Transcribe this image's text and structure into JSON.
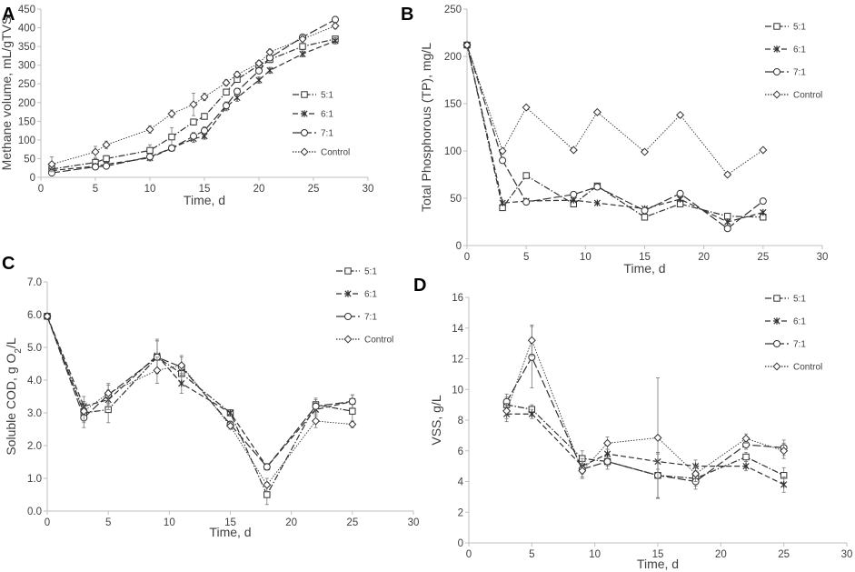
{
  "figure": {
    "colors": {
      "axis": "#bfbfbf",
      "series": "#333333",
      "text": "#404040"
    }
  },
  "chart_data": [
    {
      "panel": "A",
      "type": "line",
      "xlabel": "Time, d",
      "ylabel": "Methane volume, mL/gTVS",
      "xlim": [
        0,
        30
      ],
      "ylim": [
        0,
        450
      ],
      "xticks": [
        0,
        5,
        10,
        15,
        20,
        25,
        30
      ],
      "yticks": [
        0,
        50,
        100,
        150,
        200,
        250,
        300,
        350,
        400,
        450
      ],
      "series": [
        {
          "name": "5:1",
          "marker": "square",
          "dash": "7,2,1.5,2",
          "x": [
            1,
            5,
            6,
            10,
            12,
            14,
            15,
            17,
            18,
            20,
            21,
            24,
            27
          ],
          "y": [
            22,
            40,
            50,
            72,
            108,
            148,
            163,
            228,
            262,
            300,
            315,
            350,
            370
          ],
          "err": [
            8,
            10,
            8,
            15,
            25,
            8,
            8,
            8,
            8,
            8,
            8,
            8,
            8
          ]
        },
        {
          "name": "6:1",
          "marker": "star",
          "dash": "6,3",
          "x": [
            1,
            5,
            6,
            10,
            12,
            14,
            15,
            17,
            18,
            20,
            21,
            24,
            27
          ],
          "y": [
            18,
            30,
            35,
            52,
            78,
            103,
            110,
            188,
            213,
            260,
            286,
            330,
            365
          ],
          "err": [
            6,
            6,
            6,
            8,
            8,
            10,
            8,
            10,
            10,
            8,
            8,
            8,
            8
          ]
        },
        {
          "name": "7:1",
          "marker": "circle",
          "dash": "9,3",
          "x": [
            1,
            5,
            6,
            10,
            12,
            14,
            15,
            17,
            18,
            20,
            21,
            24,
            27
          ],
          "y": [
            12,
            28,
            30,
            55,
            78,
            110,
            125,
            192,
            230,
            285,
            320,
            375,
            422
          ],
          "err": [
            6,
            6,
            6,
            8,
            8,
            10,
            10,
            10,
            8,
            8,
            8,
            8,
            8
          ]
        },
        {
          "name": "Control",
          "marker": "diamond",
          "dash": "1.5,1.5",
          "x": [
            1,
            5,
            6,
            10,
            12,
            14,
            15,
            17,
            18,
            20,
            21,
            24,
            27
          ],
          "y": [
            35,
            68,
            87,
            128,
            170,
            195,
            215,
            253,
            275,
            305,
            335,
            370,
            405
          ],
          "err": [
            20,
            15,
            10,
            10,
            10,
            30,
            10,
            8,
            8,
            8,
            8,
            8,
            8
          ]
        }
      ]
    },
    {
      "panel": "B",
      "type": "line",
      "xlabel": "Time, d",
      "ylabel": "Total Phosphorous (TP), mg/L",
      "xlim": [
        0,
        30
      ],
      "ylim": [
        0,
        250
      ],
      "xticks": [
        0,
        5,
        10,
        15,
        20,
        25,
        30
      ],
      "yticks": [
        0,
        50,
        100,
        150,
        200,
        250
      ],
      "series": [
        {
          "name": "5:1",
          "marker": "square",
          "dash": "7,2,1.5,2",
          "x": [
            0,
            3,
            5,
            9,
            11,
            15,
            18,
            22,
            25
          ],
          "y": [
            212,
            40,
            74,
            44,
            63,
            30,
            44,
            31,
            30
          ]
        },
        {
          "name": "6:1",
          "marker": "star",
          "dash": "6,3",
          "x": [
            0,
            3,
            5,
            9,
            11,
            15,
            18,
            22,
            25
          ],
          "y": [
            212,
            45,
            47,
            48,
            45,
            39,
            49,
            25,
            35
          ]
        },
        {
          "name": "7:1",
          "marker": "circle",
          "dash": "9,3",
          "x": [
            0,
            3,
            5,
            9,
            11,
            15,
            18,
            22,
            25
          ],
          "y": [
            212,
            90,
            46,
            54,
            62,
            37,
            55,
            18,
            47
          ]
        },
        {
          "name": "Control",
          "marker": "diamond",
          "dash": "1.5,1.5",
          "x": [
            0,
            3,
            5,
            9,
            11,
            15,
            18,
            22,
            25
          ],
          "y": [
            212,
            100,
            146,
            101,
            141,
            99,
            138,
            75,
            101
          ]
        }
      ]
    },
    {
      "panel": "C",
      "type": "line",
      "xlabel": "Time, d",
      "ylabel": "Soluble COD,  g O2/L",
      "xlim": [
        0,
        30
      ],
      "ylim": [
        0,
        7
      ],
      "xticks": [
        0,
        5,
        10,
        15,
        20,
        25,
        30
      ],
      "yticks": [
        "0.0",
        "1.0",
        "2.0",
        "3.0",
        "4.0",
        "5.0",
        "6.0",
        "7.0"
      ],
      "series": [
        {
          "name": "5:1",
          "marker": "square",
          "dash": "7,2,1.5,2",
          "x": [
            0,
            3,
            5,
            9,
            11,
            15,
            18,
            22,
            25
          ],
          "y": [
            5.95,
            3.0,
            3.1,
            4.7,
            4.2,
            3.0,
            0.5,
            3.25,
            3.05
          ],
          "err": [
            0.05,
            0.3,
            0.4,
            0.5,
            0.3,
            0.1,
            0.3,
            0.2,
            0.3
          ]
        },
        {
          "name": "6:1",
          "marker": "star",
          "dash": "6,3",
          "x": [
            0,
            3,
            5,
            9,
            11,
            15,
            18,
            22,
            25
          ],
          "y": [
            5.95,
            3.2,
            3.4,
            4.75,
            3.9,
            3.0,
            1.35,
            3.1,
            3.35
          ],
          "err": [
            0.05,
            0.3,
            0.3,
            0.5,
            0.3,
            0.1,
            0.1,
            0.2,
            0.2
          ]
        },
        {
          "name": "7:1",
          "marker": "circle",
          "dash": "9,3",
          "x": [
            0,
            3,
            5,
            9,
            11,
            15,
            18,
            22,
            25
          ],
          "y": [
            5.95,
            2.85,
            3.55,
            4.7,
            4.4,
            2.65,
            1.35,
            3.2,
            3.35
          ],
          "err": [
            0.05,
            0.3,
            0.3,
            0.5,
            0.3,
            0.1,
            0.1,
            0.2,
            0.2
          ]
        },
        {
          "name": "Control",
          "marker": "diamond",
          "dash": "1.5,1.5",
          "x": [
            0,
            3,
            5,
            9,
            11,
            15,
            18,
            22,
            25
          ],
          "y": [
            5.95,
            3.05,
            3.6,
            4.3,
            4.45,
            2.6,
            0.8,
            2.75,
            2.65
          ],
          "err": [
            0.05,
            0.3,
            0.3,
            0.4,
            0.3,
            0.1,
            0.2,
            0.2,
            0.1
          ]
        }
      ]
    },
    {
      "panel": "D",
      "type": "line",
      "xlabel": "Time, d",
      "ylabel": "VSS, g/L",
      "xlim": [
        0,
        30
      ],
      "ylim": [
        0,
        16
      ],
      "xticks": [
        0,
        5,
        10,
        15,
        20,
        25,
        30
      ],
      "yticks": [
        0,
        2,
        4,
        6,
        8,
        10,
        12,
        14,
        16
      ],
      "series": [
        {
          "name": "5:1",
          "marker": "square",
          "dash": "7,2,1.5,2",
          "x": [
            3,
            5,
            9,
            11,
            15,
            18,
            22,
            25
          ],
          "y": [
            9.0,
            8.7,
            5.5,
            5.3,
            4.4,
            4.2,
            5.6,
            4.4
          ],
          "err": [
            0.5,
            0.3,
            0.5,
            0.5,
            1.5,
            0.5,
            0.3,
            0.5
          ]
        },
        {
          "name": "6:1",
          "marker": "star",
          "dash": "6,3",
          "x": [
            3,
            5,
            9,
            11,
            15,
            18,
            22,
            25
          ],
          "y": [
            8.4,
            8.4,
            5.0,
            5.8,
            5.3,
            5.0,
            5.0,
            3.8
          ],
          "err": [
            0.5,
            0.3,
            0.5,
            0.3,
            0.5,
            0.4,
            0.3,
            0.5
          ]
        },
        {
          "name": "7:1",
          "marker": "circle",
          "dash": "9,3",
          "x": [
            3,
            5,
            9,
            11,
            15,
            18,
            22,
            25
          ],
          "y": [
            9.2,
            12.1,
            4.8,
            5.3,
            4.4,
            4.0,
            6.4,
            6.2
          ],
          "err": [
            0.5,
            2.0,
            0.5,
            0.3,
            1.5,
            0.5,
            0.3,
            0.5
          ]
        },
        {
          "name": "Control",
          "marker": "diamond",
          "dash": "1.5,1.5",
          "x": [
            3,
            5,
            9,
            11,
            15,
            18,
            22,
            25
          ],
          "y": [
            8.6,
            13.2,
            4.7,
            6.5,
            6.85,
            4.5,
            6.8,
            6.0
          ],
          "err": [
            0.5,
            1.0,
            0.5,
            0.4,
            3.9,
            0.5,
            0.3,
            0.5
          ]
        }
      ]
    }
  ]
}
